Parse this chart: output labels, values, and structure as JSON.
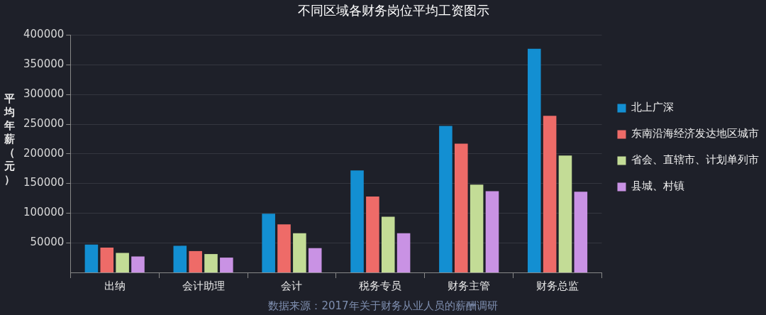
{
  "chart_data": {
    "type": "bar",
    "title": "不同区域各财务岗位平均工资图示",
    "ylabel": "平均年薪（元）",
    "categories": [
      "出纳",
      "会计助理",
      "会计",
      "税务专员",
      "财务主管",
      "财务总监"
    ],
    "series": [
      {
        "name": "北上广深",
        "color": "#138fd2",
        "values": [
          47000,
          45000,
          99000,
          172000,
          247000,
          377000
        ]
      },
      {
        "name": "东南沿海经济发达地区城市",
        "color": "#ee6b68",
        "values": [
          42000,
          36000,
          81000,
          128000,
          217000,
          264000
        ]
      },
      {
        "name": "省会、直辖市、计划单列市",
        "color": "#c3dc96",
        "values": [
          33000,
          31000,
          66000,
          94000,
          148000,
          197000
        ]
      },
      {
        "name": "县城、村镇",
        "color": "#c992e4",
        "values": [
          27000,
          25000,
          41000,
          66000,
          137000,
          136000
        ]
      }
    ],
    "ylim": [
      0,
      400000
    ],
    "yticks": [
      50000,
      100000,
      150000,
      200000,
      250000,
      300000,
      350000,
      400000
    ],
    "grid": "y",
    "legend": "right",
    "annotations": [
      "数据来源：2017年关于财务从业人员的薪酬调研"
    ]
  }
}
